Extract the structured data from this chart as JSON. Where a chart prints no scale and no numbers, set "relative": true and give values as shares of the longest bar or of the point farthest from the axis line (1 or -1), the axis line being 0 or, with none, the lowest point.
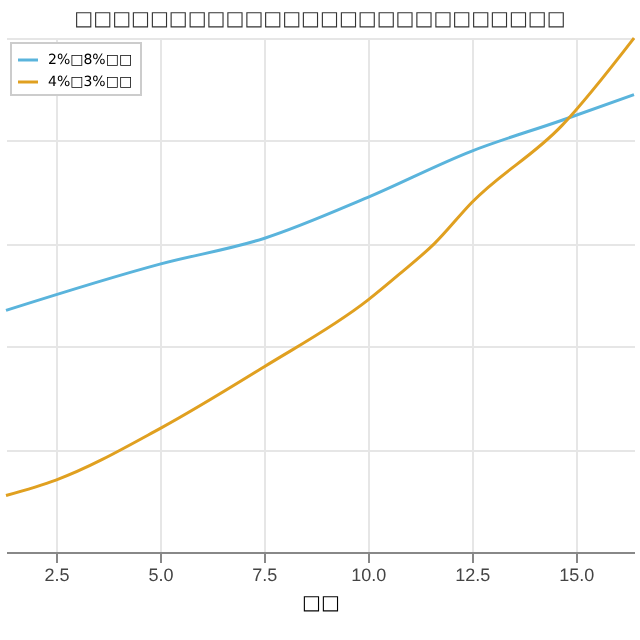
{
  "chart_data": {
    "type": "line",
    "title": "□□□□□□□□□□□□□□□□□□□□□□□□□□",
    "xlabel": "□□",
    "relative": true,
    "xlim": [
      1.3,
      16.4
    ],
    "xticks": [
      {
        "value": 2.5,
        "label": "2.5"
      },
      {
        "value": 5,
        "label": "5.0"
      },
      {
        "value": 7.5,
        "label": "7.5"
      },
      {
        "value": 10,
        "label": "10.0"
      },
      {
        "value": 12.5,
        "label": "12.5"
      },
      {
        "value": 15,
        "label": "15.0"
      }
    ],
    "grid": true,
    "legend": "top left",
    "series": [
      {
        "name": "2%□8%□□",
        "color": "#5ab4dc",
        "x": [
          1.3,
          5.0,
          7.5,
          10.0,
          12.5,
          14.67,
          16.4
        ],
        "values": [
          0.47,
          0.56,
          0.61,
          0.69,
          0.78,
          0.84,
          0.89
        ]
      },
      {
        "name": "4%□3%□□",
        "color": "#e0a020",
        "x": [
          1.3,
          2.5,
          5.0,
          7.5,
          10.0,
          10.75,
          11.6,
          12.5,
          14.67,
          16.4
        ],
        "values": [
          0.11,
          0.14,
          0.24,
          0.36,
          0.49,
          0.54,
          0.6,
          0.68,
          0.83,
          1
        ]
      }
    ]
  }
}
